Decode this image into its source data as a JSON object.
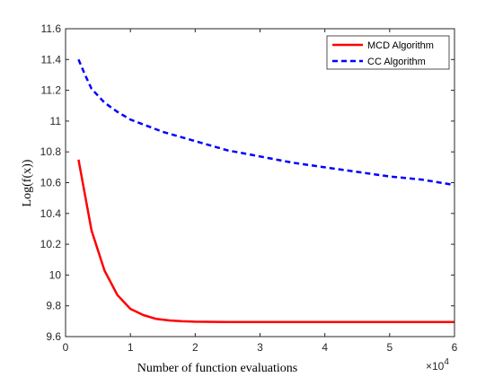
{
  "chart_data": {
    "type": "line",
    "xlabel": "Number of function evaluations",
    "ylabel": "Log(f(x))",
    "x_exponent_label": "×10",
    "x_exponent": "4",
    "xlim": [
      0,
      6
    ],
    "ylim": [
      9.6,
      11.6
    ],
    "xticks": [
      "0",
      "1",
      "2",
      "3",
      "4",
      "5",
      "6"
    ],
    "yticks": [
      "9.6",
      "9.8",
      "10",
      "10.2",
      "10.4",
      "10.6",
      "10.8",
      "11",
      "11.2",
      "11.4",
      "11.6"
    ],
    "grid": false,
    "legend_position": "top-right",
    "series": [
      {
        "name": "MCD Algorithm",
        "color": "#ff0000",
        "dash": "solid",
        "x": [
          0.2,
          0.4,
          0.6,
          0.8,
          1.0,
          1.2,
          1.4,
          1.6,
          1.8,
          2.0,
          2.5,
          3.0,
          3.5,
          4.0,
          5.0,
          6.0
        ],
        "y": [
          10.75,
          10.29,
          10.03,
          9.87,
          9.78,
          9.74,
          9.715,
          9.705,
          9.7,
          9.697,
          9.695,
          9.695,
          9.695,
          9.695,
          9.695,
          9.695
        ]
      },
      {
        "name": "CC Algorithm",
        "color": "#0000ff",
        "dash": "dashed",
        "x": [
          0.2,
          0.3,
          0.4,
          0.6,
          0.8,
          1.0,
          1.5,
          2.0,
          2.5,
          3.0,
          3.5,
          4.0,
          4.5,
          5.0,
          5.5,
          6.0
        ],
        "y": [
          11.4,
          11.3,
          11.21,
          11.12,
          11.06,
          11.01,
          10.93,
          10.87,
          10.81,
          10.77,
          10.73,
          10.7,
          10.67,
          10.64,
          10.62,
          10.585
        ]
      }
    ]
  }
}
